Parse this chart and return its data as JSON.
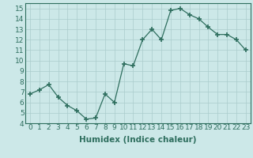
{
  "x": [
    0,
    1,
    2,
    3,
    4,
    5,
    6,
    7,
    8,
    9,
    10,
    11,
    12,
    13,
    14,
    15,
    16,
    17,
    18,
    19,
    20,
    21,
    22,
    23
  ],
  "y": [
    6.8,
    7.2,
    7.7,
    6.5,
    5.7,
    5.2,
    4.4,
    4.5,
    6.8,
    6.0,
    9.7,
    9.5,
    12.0,
    13.0,
    12.0,
    14.8,
    15.0,
    14.4,
    14.0,
    13.2,
    12.5,
    12.5,
    12.0,
    11.0
  ],
  "line_color": "#2e6e5e",
  "marker": "+",
  "marker_size": 4,
  "bg_color": "#cce8e8",
  "grid_color": "#aacccc",
  "xlabel": "Humidex (Indice chaleur)",
  "xlim": [
    -0.5,
    23.5
  ],
  "ylim": [
    4,
    15.5
  ],
  "yticks": [
    4,
    5,
    6,
    7,
    8,
    9,
    10,
    11,
    12,
    13,
    14,
    15
  ],
  "xticks": [
    0,
    1,
    2,
    3,
    4,
    5,
    6,
    7,
    8,
    9,
    10,
    11,
    12,
    13,
    14,
    15,
    16,
    17,
    18,
    19,
    20,
    21,
    22,
    23
  ],
  "tick_fontsize": 6.5,
  "label_fontsize": 7.5
}
